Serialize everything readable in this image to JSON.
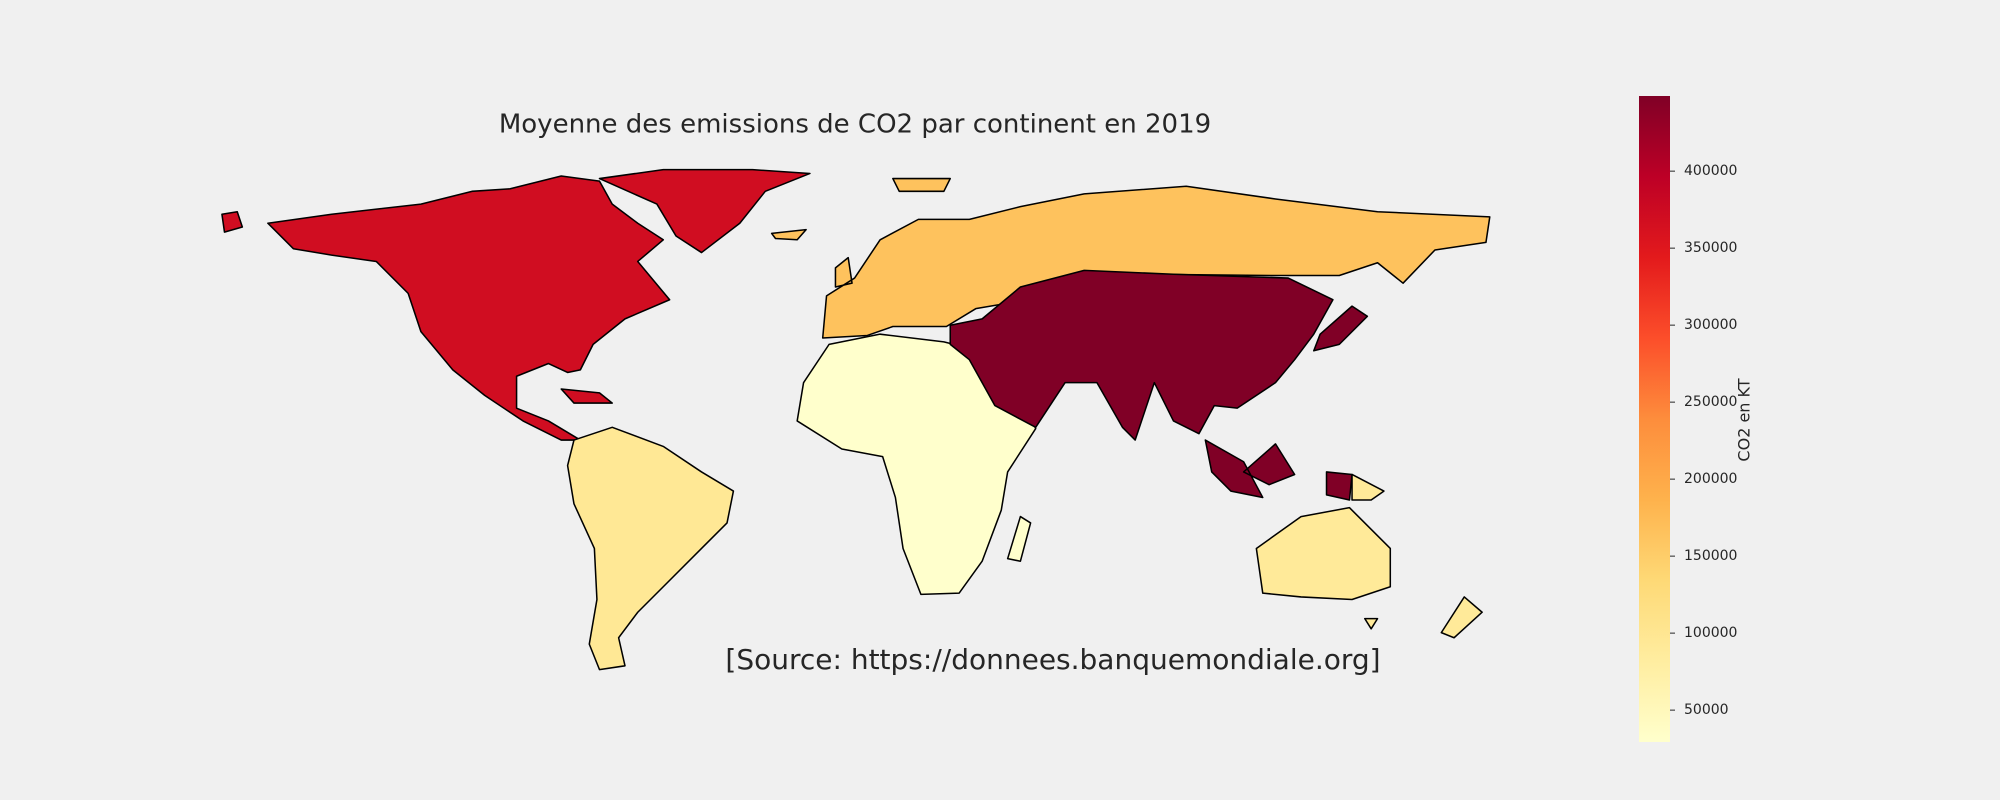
{
  "chart_data": {
    "type": "choropleth",
    "title": "Moyenne des emissions de CO2 par continent en 2019",
    "annotation": "[Source: https://donnees.banquemondiale.org]",
    "values": [
      370000,
      95000,
      29300,
      165000,
      448800,
      90000
    ],
    "colormap": "YlOrRd",
    "colorbar_label": "CO2 en KT",
    "vlim": [
      29300,
      448800
    ],
    "vticks": [
      50000,
      100000,
      150000,
      200000,
      250000,
      300000,
      350000,
      400000
    ]
  }
}
